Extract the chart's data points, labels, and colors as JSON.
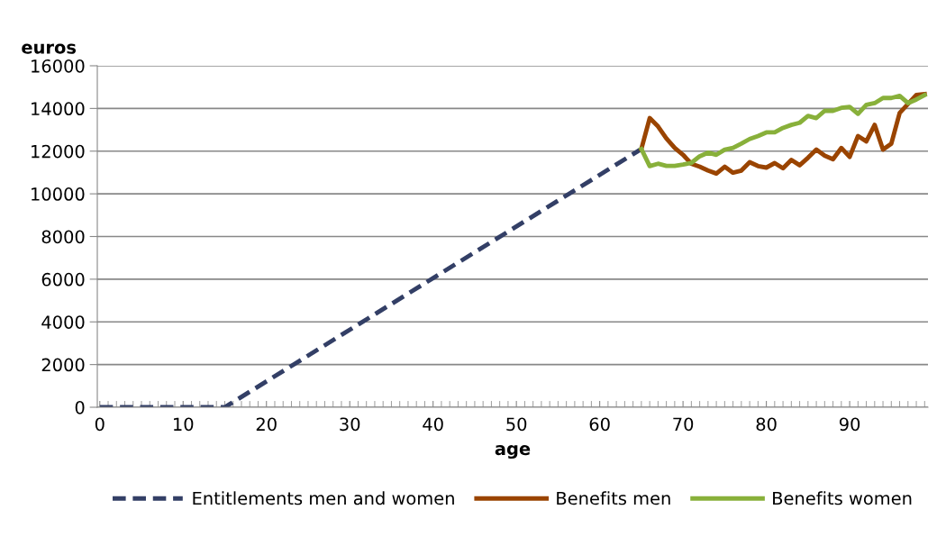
{
  "chart_data": {
    "type": "line",
    "xlabel": "age",
    "ylabel": "euros",
    "xlim": [
      -0.3,
      99.4
    ],
    "xticks": [
      0,
      10,
      20,
      30,
      40,
      50,
      60,
      70,
      80,
      90
    ],
    "ylim": [
      0,
      16000
    ],
    "yticks": [
      0,
      2000,
      4000,
      6000,
      8000,
      10000,
      12000,
      14000,
      16000
    ],
    "grid": "y",
    "legend": "bottom",
    "marker": "none",
    "series": [
      {
        "name": "Entitlements men and women",
        "color": "#333f66",
        "line_style": "dashed",
        "x": [
          0,
          15,
          65
        ],
        "values": [
          0,
          0,
          12100
        ]
      },
      {
        "name": "Benefits men",
        "color": "#9a4400",
        "line_style": "solid",
        "x": [
          65,
          66,
          67,
          68,
          69,
          70,
          71,
          72,
          73,
          74,
          75,
          76,
          77,
          78,
          79,
          80,
          81,
          82,
          83,
          84,
          85,
          86,
          87,
          88,
          89,
          90,
          91,
          92,
          93,
          94,
          95,
          96,
          97,
          98,
          99
        ],
        "values": [
          12100,
          13550,
          13160,
          12600,
          12150,
          11830,
          11410,
          11270,
          11090,
          10950,
          11270,
          10990,
          11090,
          11480,
          11300,
          11230,
          11440,
          11200,
          11590,
          11340,
          11690,
          12070,
          11790,
          11620,
          12150,
          11730,
          12710,
          12460,
          13230,
          12070,
          12350,
          13790,
          14210,
          14630,
          14670
        ]
      },
      {
        "name": "Benefits women",
        "color": "#88b03a",
        "line_style": "solid",
        "x": [
          65,
          66,
          67,
          68,
          69,
          70,
          71,
          72,
          73,
          74,
          75,
          76,
          77,
          78,
          79,
          80,
          81,
          82,
          83,
          84,
          85,
          86,
          87,
          88,
          89,
          90,
          91,
          92,
          93,
          94,
          95,
          96,
          97,
          98,
          99
        ],
        "values": [
          12100,
          11300,
          11410,
          11310,
          11310,
          11370,
          11450,
          11760,
          11930,
          11830,
          12070,
          12150,
          12350,
          12570,
          12710,
          12880,
          12880,
          13090,
          13230,
          13330,
          13650,
          13550,
          13890,
          13890,
          14030,
          14070,
          13750,
          14170,
          14250,
          14490,
          14490,
          14590,
          14250,
          14420,
          14630
        ]
      }
    ]
  }
}
